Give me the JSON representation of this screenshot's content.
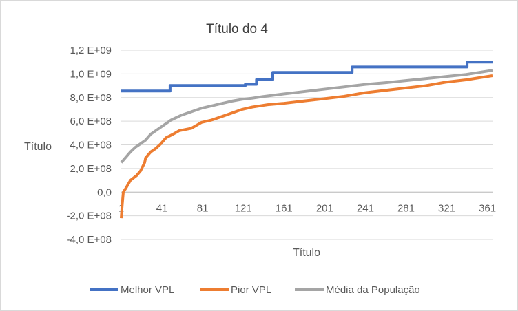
{
  "chart_data": {
    "type": "line",
    "title": "Título do 4",
    "xlabel": "Título",
    "ylabel": "Título",
    "x_range": [
      1,
      366
    ],
    "ylim": [
      -400000000,
      1200000000
    ],
    "y_ticks": [
      {
        "value": 1200000000,
        "label": "1,2 E+09"
      },
      {
        "value": 1000000000,
        "label": "1,0 E+09"
      },
      {
        "value": 800000000,
        "label": "8,0 E+08"
      },
      {
        "value": 600000000,
        "label": "6,0 E+08"
      },
      {
        "value": 400000000,
        "label": "4,0 E+08"
      },
      {
        "value": 200000000,
        "label": "2,0 E+08"
      },
      {
        "value": 0,
        "label": "0,0"
      },
      {
        "value": -200000000,
        "label": "-2,0 E+08"
      },
      {
        "value": -400000000,
        "label": "-4,0 E+08"
      }
    ],
    "x_ticks": [
      {
        "value": 1,
        "label": "1"
      },
      {
        "value": 41,
        "label": "41"
      },
      {
        "value": 81,
        "label": "81"
      },
      {
        "value": 121,
        "label": "121"
      },
      {
        "value": 161,
        "label": "161"
      },
      {
        "value": 201,
        "label": "201"
      },
      {
        "value": 241,
        "label": "241"
      },
      {
        "value": 281,
        "label": "281"
      },
      {
        "value": 321,
        "label": "321"
      },
      {
        "value": 361,
        "label": "361"
      }
    ],
    "grid": true,
    "legend_position": "bottom",
    "series": [
      {
        "name": "Melhor VPL",
        "color": "#4472c4",
        "step": true,
        "points": [
          [
            1,
            855000000
          ],
          [
            49,
            855000000
          ],
          [
            49,
            902000000
          ],
          [
            123,
            902000000
          ],
          [
            123,
            912000000
          ],
          [
            134,
            912000000
          ],
          [
            134,
            952000000
          ],
          [
            150,
            952000000
          ],
          [
            150,
            1012000000
          ],
          [
            228,
            1012000000
          ],
          [
            228,
            1058000000
          ],
          [
            341,
            1058000000
          ],
          [
            341,
            1100000000
          ],
          [
            366,
            1100000000
          ]
        ]
      },
      {
        "name": "Pior VPL",
        "color": "#ed7d31",
        "step": false,
        "points": [
          [
            1,
            -220000000
          ],
          [
            2,
            -100000000
          ],
          [
            3,
            0
          ],
          [
            6,
            40000000
          ],
          [
            10,
            100000000
          ],
          [
            16,
            140000000
          ],
          [
            20,
            180000000
          ],
          [
            24,
            250000000
          ],
          [
            25,
            290000000
          ],
          [
            30,
            340000000
          ],
          [
            35,
            370000000
          ],
          [
            40,
            410000000
          ],
          [
            45,
            460000000
          ],
          [
            52,
            490000000
          ],
          [
            58,
            520000000
          ],
          [
            70,
            540000000
          ],
          [
            80,
            590000000
          ],
          [
            90,
            610000000
          ],
          [
            100,
            640000000
          ],
          [
            110,
            670000000
          ],
          [
            120,
            700000000
          ],
          [
            130,
            720000000
          ],
          [
            145,
            740000000
          ],
          [
            160,
            750000000
          ],
          [
            180,
            770000000
          ],
          [
            200,
            790000000
          ],
          [
            220,
            810000000
          ],
          [
            240,
            840000000
          ],
          [
            260,
            860000000
          ],
          [
            280,
            880000000
          ],
          [
            300,
            900000000
          ],
          [
            320,
            930000000
          ],
          [
            340,
            950000000
          ],
          [
            355,
            970000000
          ],
          [
            366,
            985000000
          ]
        ]
      },
      {
        "name": "Média da População",
        "color": "#a5a5a5",
        "step": false,
        "points": [
          [
            1,
            250000000
          ],
          [
            5,
            290000000
          ],
          [
            10,
            340000000
          ],
          [
            15,
            380000000
          ],
          [
            20,
            410000000
          ],
          [
            25,
            440000000
          ],
          [
            30,
            490000000
          ],
          [
            35,
            520000000
          ],
          [
            40,
            550000000
          ],
          [
            45,
            580000000
          ],
          [
            50,
            610000000
          ],
          [
            55,
            630000000
          ],
          [
            60,
            650000000
          ],
          [
            70,
            680000000
          ],
          [
            80,
            710000000
          ],
          [
            90,
            730000000
          ],
          [
            100,
            750000000
          ],
          [
            110,
            770000000
          ],
          [
            120,
            785000000
          ],
          [
            130,
            795000000
          ],
          [
            140,
            808000000
          ],
          [
            160,
            830000000
          ],
          [
            180,
            850000000
          ],
          [
            200,
            870000000
          ],
          [
            220,
            890000000
          ],
          [
            240,
            910000000
          ],
          [
            260,
            925000000
          ],
          [
            280,
            942000000
          ],
          [
            300,
            960000000
          ],
          [
            320,
            978000000
          ],
          [
            340,
            995000000
          ],
          [
            366,
            1030000000
          ]
        ]
      }
    ]
  }
}
